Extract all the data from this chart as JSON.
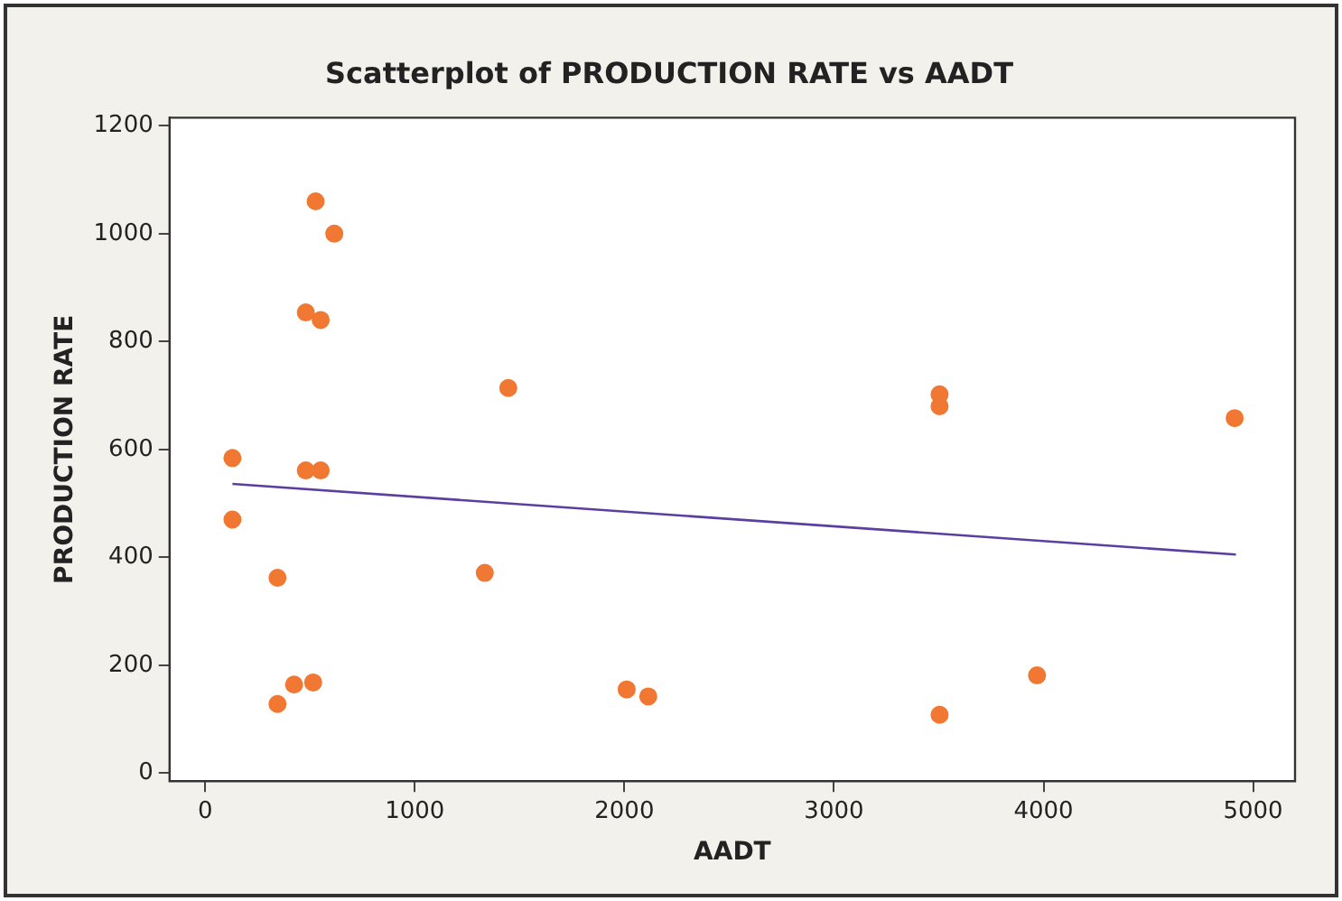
{
  "chart_data": {
    "type": "scatter",
    "title": "Scatterplot of PRODUCTION RATE vs AADT",
    "xlabel": "AADT",
    "ylabel": "PRODUCTION RATE",
    "series": [
      {
        "color": "#f07832",
        "x": [
          130,
          130,
          345,
          345,
          424,
          515,
          527,
          616,
          480,
          551,
          480,
          551,
          1446,
          1334,
          2011,
          2114,
          3504,
          3504,
          3504,
          3969,
          4912
        ],
        "values": [
          584,
          470,
          362,
          128,
          164,
          168,
          1060,
          1000,
          854,
          840,
          561,
          561,
          714,
          371,
          155,
          142,
          702,
          680,
          108,
          181,
          658
        ]
      },
      {
        "type": "line",
        "marker": "none",
        "color": "#5b3fa0",
        "x": [
          130,
          4918
        ],
        "values": [
          536,
          405
        ]
      }
    ],
    "xlim": [
      -170,
      5200
    ],
    "xticks": [
      0,
      1000,
      2000,
      3000,
      4000,
      5000
    ],
    "ylim": [
      -15,
      1215
    ],
    "yticks": [
      0,
      200,
      400,
      600,
      800,
      1000,
      1200
    ],
    "grid": false,
    "legend": false,
    "marker": "circle",
    "line_style": "solid"
  }
}
